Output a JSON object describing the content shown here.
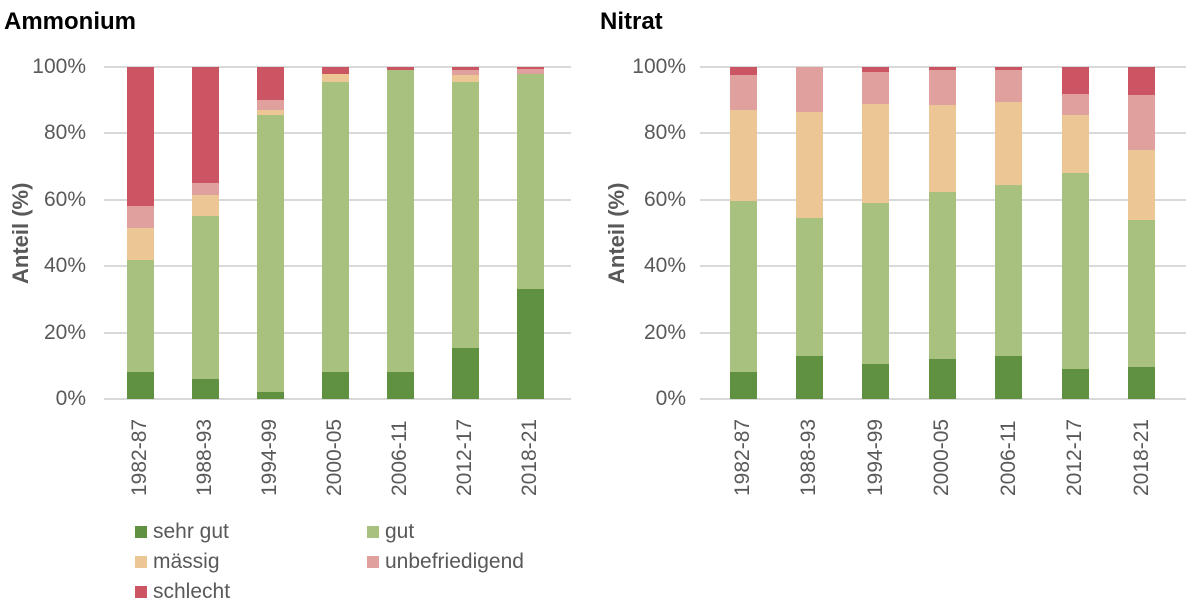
{
  "colors": {
    "text": "#595959",
    "title": "#000000",
    "grid": "#d9d9d9",
    "sehr_gut": "#5f9141",
    "gut": "#a9c17e",
    "maessig": "#ecc795",
    "unbefriedigend": "#dfa09e",
    "schlecht": "#cc5563"
  },
  "y_axis": {
    "label": "Anteil (%)",
    "tick_labels": [
      "100%",
      "80%",
      "60%",
      "40%",
      "20%",
      "0%"
    ]
  },
  "legend": {
    "items": [
      {
        "label": "sehr gut",
        "color": "#5f9141"
      },
      {
        "label": "gut",
        "color": "#a9c17e"
      },
      {
        "label": "mässig",
        "color": "#ecc795"
      },
      {
        "label": "unbefriedigend",
        "color": "#dfa09e"
      },
      {
        "label": "schlecht",
        "color": "#cc5563"
      }
    ]
  },
  "chart_data": [
    {
      "type": "bar",
      "stacked": true,
      "title": "Ammonium",
      "xlabel": "",
      "ylabel": "Anteil (%)",
      "ylim": [
        0,
        100
      ],
      "yticks": [
        0,
        20,
        40,
        60,
        80,
        100
      ],
      "grid": true,
      "legend_position": "bottom-left",
      "categories": [
        "1982-87",
        "1988-93",
        "1994-99",
        "2000-05",
        "2006-11",
        "2012-17",
        "2018-21"
      ],
      "series": [
        {
          "name": "sehr gut",
          "color": "#5f9141",
          "values": [
            8,
            6,
            2,
            8,
            8,
            15.5,
            33
          ]
        },
        {
          "name": "gut",
          "color": "#a9c17e",
          "values": [
            34,
            49,
            83.5,
            87.5,
            91,
            80,
            65
          ]
        },
        {
          "name": "mässig",
          "color": "#ecc795",
          "values": [
            9.5,
            6.5,
            1.5,
            2.5,
            0,
            2,
            0
          ]
        },
        {
          "name": "unbefriedigend",
          "color": "#dfa09e",
          "values": [
            6.5,
            3.5,
            3,
            0,
            0,
            1.5,
            1.5
          ]
        },
        {
          "name": "schlecht",
          "color": "#cc5563",
          "values": [
            42,
            35,
            10,
            2,
            1,
            1,
            0.5
          ]
        }
      ]
    },
    {
      "type": "bar",
      "stacked": true,
      "title": "Nitrat",
      "xlabel": "",
      "ylabel": "Anteil (%)",
      "ylim": [
        0,
        100
      ],
      "yticks": [
        0,
        20,
        40,
        60,
        80,
        100
      ],
      "grid": true,
      "categories": [
        "1982-87",
        "1988-93",
        "1994-99",
        "2000-05",
        "2006-11",
        "2012-17",
        "2018-21"
      ],
      "series": [
        {
          "name": "sehr gut",
          "color": "#5f9141",
          "values": [
            8,
            13,
            10.5,
            12,
            13,
            9,
            9.5
          ]
        },
        {
          "name": "gut",
          "color": "#a9c17e",
          "values": [
            51.5,
            41.5,
            48.5,
            50.5,
            51.5,
            59,
            44.5
          ]
        },
        {
          "name": "mässig",
          "color": "#ecc795",
          "values": [
            27.5,
            32,
            30,
            26,
            25,
            17.5,
            21
          ]
        },
        {
          "name": "unbefriedigend",
          "color": "#dfa09e",
          "values": [
            10.5,
            13.5,
            9.5,
            10.5,
            9.5,
            6.5,
            16.5
          ]
        },
        {
          "name": "schlecht",
          "color": "#cc5563",
          "values": [
            2.5,
            0,
            1.5,
            1,
            1,
            8,
            8.5
          ]
        }
      ]
    }
  ]
}
